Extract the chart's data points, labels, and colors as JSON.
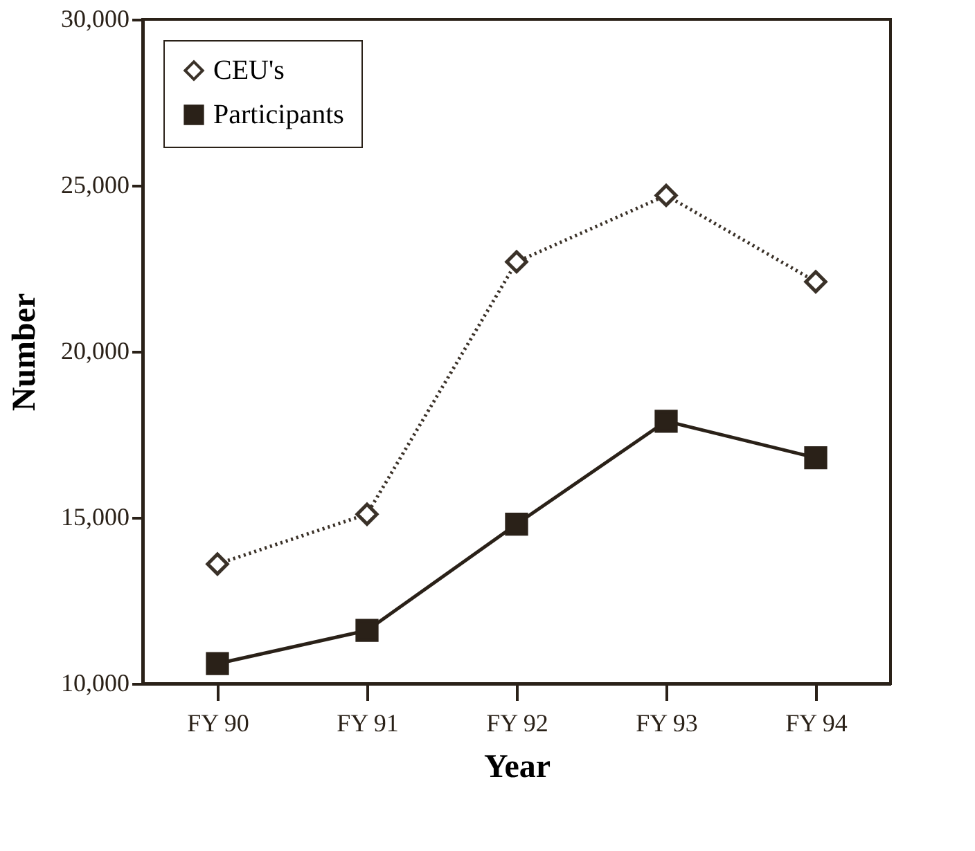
{
  "chart_data": {
    "type": "line",
    "xlabel": "Year",
    "ylabel": "Number",
    "categories": [
      "FY 90",
      "FY 91",
      "FY 92",
      "FY 93",
      "FY 94"
    ],
    "series": [
      {
        "name": "CEU's",
        "color": "#3a3128",
        "values": [
          13600,
          15100,
          22700,
          24700,
          22100
        ],
        "marker": "diamond",
        "line_style": "dotted"
      },
      {
        "name": "Participants",
        "color": "#2a2118",
        "values": [
          10600,
          11600,
          14800,
          17900,
          16800
        ],
        "marker": "square",
        "line_style": "solid"
      }
    ],
    "ylim": [
      10000,
      30000
    ],
    "yticks": [
      {
        "value": 10000,
        "label": "10,000"
      },
      {
        "value": 15000,
        "label": "15,000"
      },
      {
        "value": 20000,
        "label": "20,000"
      },
      {
        "value": 25000,
        "label": "25,000"
      },
      {
        "value": 30000,
        "label": "30,000"
      }
    ],
    "grid": false,
    "legend": "top left"
  }
}
